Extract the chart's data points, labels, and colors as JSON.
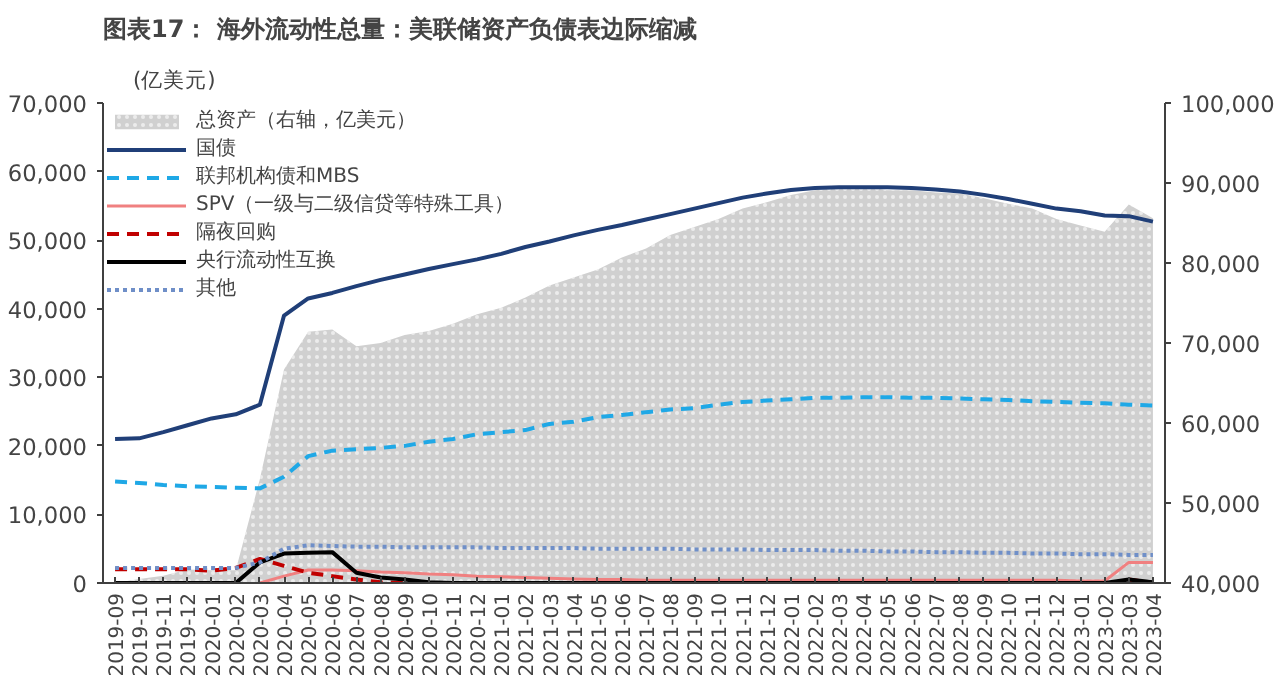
{
  "chart_data": {
    "type": "line",
    "title": "图表17： 海外流动性总量：美联储资产负债表边际缩减",
    "ylabel": "(亿美元)",
    "categories": [
      "2019-09",
      "2019-10",
      "2019-11",
      "2019-12",
      "2020-01",
      "2020-02",
      "2020-03",
      "2020-04",
      "2020-05",
      "2020-06",
      "2020-07",
      "2020-08",
      "2020-09",
      "2020-10",
      "2020-11",
      "2020-12",
      "2021-01",
      "2021-02",
      "2021-03",
      "2021-04",
      "2021-05",
      "2021-06",
      "2021-07",
      "2021-08",
      "2021-09",
      "2021-10",
      "2021-11",
      "2021-12",
      "2022-01",
      "2022-02",
      "2022-03",
      "2022-04",
      "2022-05",
      "2022-06",
      "2022-07",
      "2022-08",
      "2022-09",
      "2022-10",
      "2022-11",
      "2022-12",
      "2023-01",
      "2023-02",
      "2023-03",
      "2023-04"
    ],
    "ylim": [
      0,
      70000
    ],
    "yticks": [
      {
        "value": 0,
        "label": "0"
      },
      {
        "value": 10000,
        "label": "10,000"
      },
      {
        "value": 20000,
        "label": "20,000"
      },
      {
        "value": 30000,
        "label": "30,000"
      },
      {
        "value": 40000,
        "label": "40,000"
      },
      {
        "value": 50000,
        "label": "50,000"
      },
      {
        "value": 60000,
        "label": "60,000"
      },
      {
        "value": 70000,
        "label": "70,000"
      }
    ],
    "y2lim": [
      40000,
      100000
    ],
    "y2ticks": [
      {
        "value": 40000,
        "label": "40,000"
      },
      {
        "value": 50000,
        "label": "50,000"
      },
      {
        "value": 60000,
        "label": "60,000"
      },
      {
        "value": 70000,
        "label": "70,000"
      },
      {
        "value": 80000,
        "label": "80,000"
      },
      {
        "value": 90000,
        "label": "90,000"
      },
      {
        "value": 100000,
        "label": "100,000"
      }
    ],
    "grid": false,
    "legend": "top left",
    "series": [
      {
        "name": "总资产（右轴，亿美元）",
        "type": "area",
        "axis": "y2",
        "color": "#d0d0d0",
        "values": [
          40000,
          40500,
          40900,
          41700,
          41600,
          41600,
          53000,
          66700,
          71400,
          71700,
          69600,
          70000,
          71000,
          71500,
          72400,
          73600,
          74400,
          75700,
          77200,
          78200,
          79200,
          80700,
          81800,
          83500,
          84500,
          85500,
          86800,
          87600,
          88500,
          89100,
          89400,
          89600,
          89100,
          89100,
          88800,
          88700,
          88100,
          87400,
          86800,
          85500,
          84700,
          83900,
          87300,
          85600
        ]
      },
      {
        "name": "国债",
        "line_style": "solid",
        "color": "#203f78",
        "values": [
          21000,
          21100,
          22000,
          23000,
          24000,
          24600,
          26000,
          39000,
          41500,
          42300,
          43300,
          44200,
          45000,
          45800,
          46500,
          47200,
          48000,
          49000,
          49800,
          50700,
          51500,
          52200,
          53000,
          53800,
          54600,
          55400,
          56200,
          56800,
          57300,
          57600,
          57700,
          57700,
          57700,
          57600,
          57400,
          57100,
          56600,
          56000,
          55300,
          54600,
          54200,
          53600,
          53500,
          52700
        ]
      },
      {
        "name": "联邦机构债和MBS",
        "line_style": "dashed",
        "color": "#1fa8e6",
        "values": [
          14800,
          14600,
          14300,
          14100,
          14000,
          13900,
          13800,
          15500,
          18500,
          19300,
          19500,
          19700,
          20000,
          20600,
          21000,
          21700,
          22000,
          22300,
          23200,
          23500,
          24200,
          24500,
          24900,
          25300,
          25500,
          26000,
          26400,
          26600,
          26800,
          27000,
          27000,
          27100,
          27100,
          27000,
          27000,
          26900,
          26800,
          26700,
          26500,
          26400,
          26300,
          26200,
          26000,
          25900
        ]
      },
      {
        "name": "SPV（一级与二级信贷等特殊工具）",
        "line_style": "solid",
        "color": "#f08080",
        "values": [
          null,
          null,
          null,
          null,
          null,
          null,
          0,
          1000,
          1900,
          1900,
          1800,
          1600,
          1500,
          1300,
          1200,
          1000,
          900,
          800,
          700,
          600,
          500,
          500,
          400,
          400,
          400,
          400,
          400,
          400,
          400,
          400,
          400,
          400,
          400,
          400,
          400,
          400,
          400,
          400,
          400,
          400,
          300,
          300,
          3000,
          3000
        ]
      },
      {
        "name": "隔夜回购",
        "line_style": "dashed",
        "color": "#c00000",
        "values": [
          2000,
          2000,
          2000,
          2000,
          1800,
          2200,
          3500,
          2500,
          1500,
          1000,
          500,
          100,
          0,
          null,
          null,
          null,
          null,
          null,
          null,
          null,
          null,
          null,
          null,
          null,
          null,
          null,
          null,
          null,
          null,
          null,
          null,
          null,
          null,
          null,
          null,
          null,
          null,
          null,
          null,
          null,
          null,
          null,
          500,
          0
        ]
      },
      {
        "name": "央行流动性互换",
        "line_style": "solid",
        "color": "#000000",
        "values": [
          0,
          0,
          0,
          0,
          0,
          0,
          3000,
          4300,
          4400,
          4500,
          1500,
          800,
          500,
          100,
          0,
          0,
          0,
          0,
          0,
          0,
          0,
          0,
          0,
          0,
          0,
          0,
          0,
          0,
          0,
          0,
          0,
          0,
          0,
          0,
          0,
          0,
          0,
          0,
          0,
          0,
          0,
          0,
          500,
          100
        ]
      },
      {
        "name": "其他",
        "line_style": "dotted",
        "color": "#6f8fc8",
        "values": [
          2200,
          2200,
          2200,
          2200,
          2200,
          2200,
          3000,
          5000,
          5500,
          5400,
          5300,
          5300,
          5200,
          5200,
          5200,
          5200,
          5100,
          5100,
          5100,
          5100,
          5000,
          5000,
          5000,
          5000,
          4900,
          4900,
          4900,
          4800,
          4800,
          4800,
          4700,
          4700,
          4600,
          4600,
          4500,
          4500,
          4400,
          4400,
          4300,
          4300,
          4200,
          4200,
          4100,
          4100
        ]
      }
    ]
  }
}
